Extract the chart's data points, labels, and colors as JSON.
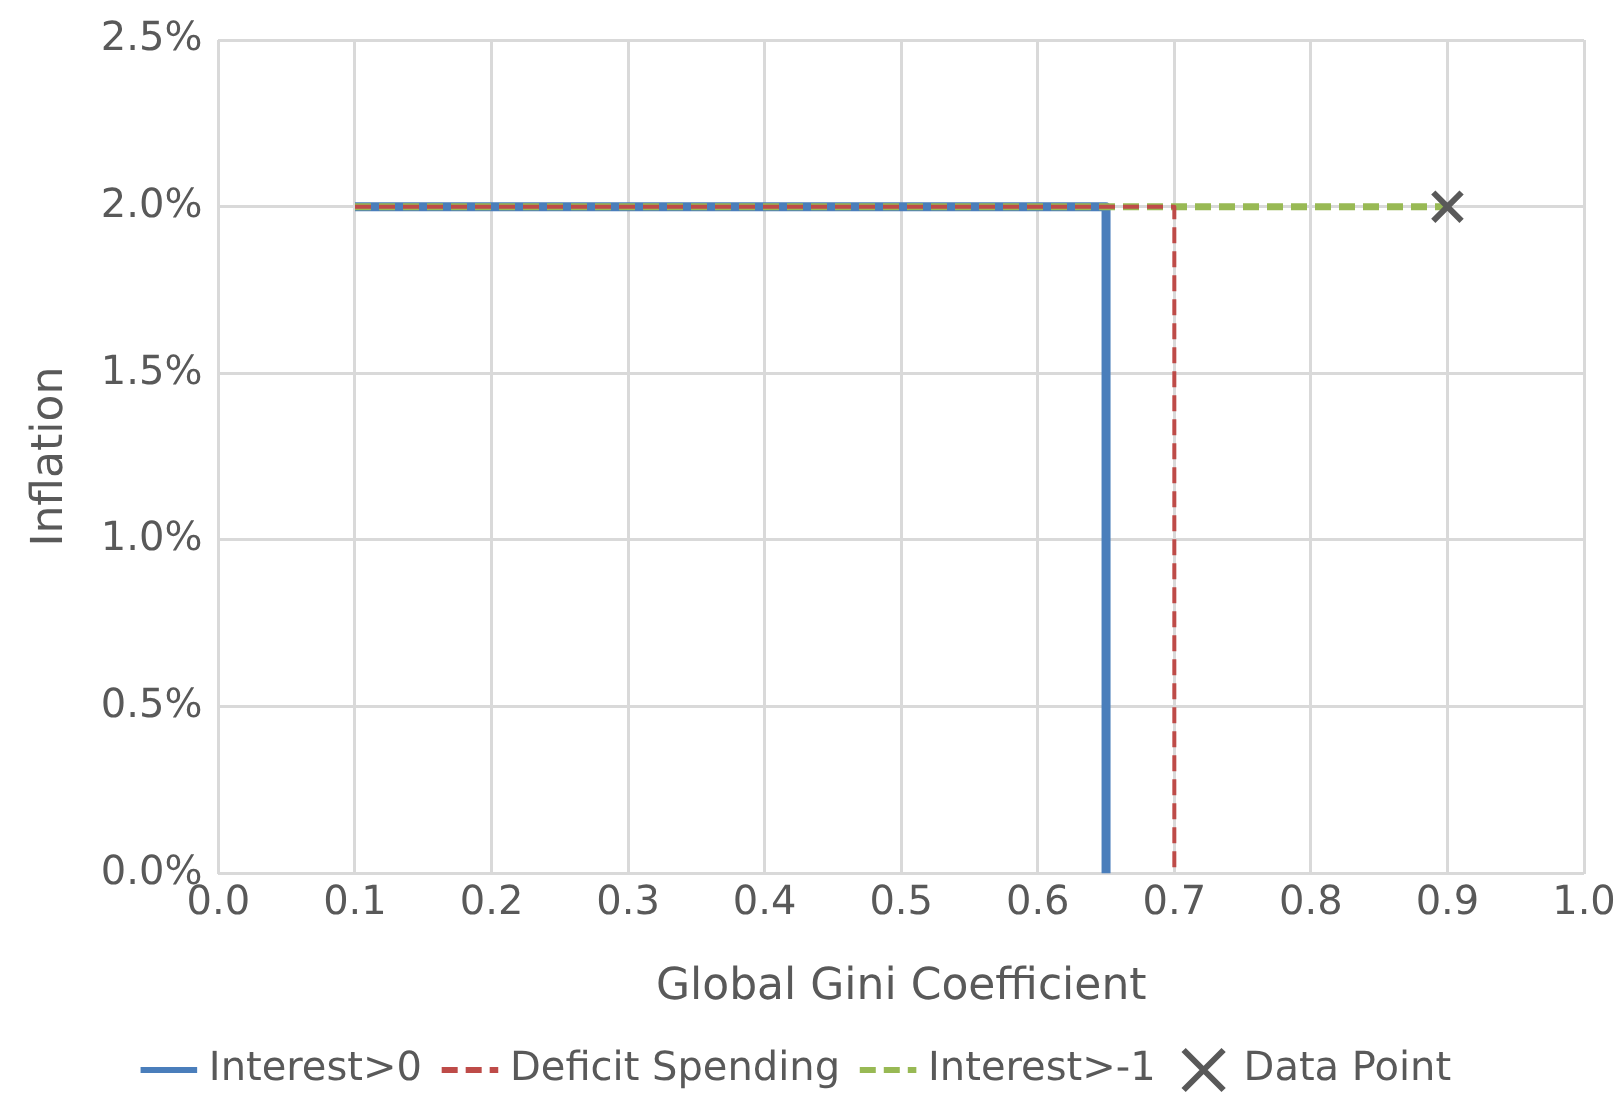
{
  "chart_data": {
    "type": "line",
    "xlabel": "Global Gini Coefficient",
    "ylabel": "Inflation",
    "xlim": [
      0,
      1
    ],
    "xticks": [
      {
        "value": 0,
        "label": "0.0"
      },
      {
        "value": 0.1,
        "label": "0.1"
      },
      {
        "value": 0.2,
        "label": "0.2"
      },
      {
        "value": 0.3,
        "label": "0.3"
      },
      {
        "value": 0.4,
        "label": "0.4"
      },
      {
        "value": 0.5,
        "label": "0.5"
      },
      {
        "value": 0.6,
        "label": "0.6"
      },
      {
        "value": 0.7,
        "label": "0.7"
      },
      {
        "value": 0.8,
        "label": "0.8"
      },
      {
        "value": 0.9,
        "label": "0.9"
      },
      {
        "value": 1,
        "label": "1.0"
      }
    ],
    "ylim": [
      0,
      2.5
    ],
    "yticks": [
      {
        "value": 0,
        "label": "0.0%"
      },
      {
        "value": 0.5,
        "label": "0.5%"
      },
      {
        "value": 1,
        "label": "1.0%"
      },
      {
        "value": 1.5,
        "label": "1.5%"
      },
      {
        "value": 2,
        "label": "2.0%"
      },
      {
        "value": 2.5,
        "label": "2.5%"
      }
    ],
    "grid": true,
    "legend": "bottom",
    "series": [
      {
        "name": "Interest>0",
        "color": "#4a7ebb",
        "line_style": "solid",
        "marker": "none",
        "x": [
          0.1,
          0.65,
          0.65
        ],
        "values": [
          2,
          2,
          0
        ]
      },
      {
        "name": "Deficit Spending",
        "color": "#be4b48",
        "line_style": "dashed",
        "marker": "none",
        "x": [
          0.1,
          0.7,
          0.7
        ],
        "values": [
          2,
          2,
          0
        ]
      },
      {
        "name": "Interest>-1",
        "color": "#98b954",
        "line_style": "dashed",
        "marker": "none",
        "x": [
          0.1,
          0.9
        ],
        "values": [
          2,
          2
        ]
      },
      {
        "name": "Data Point",
        "type": "scatter",
        "color": "#595959",
        "marker": "cross",
        "x": [
          0.9
        ],
        "values": [
          2
        ]
      }
    ]
  }
}
